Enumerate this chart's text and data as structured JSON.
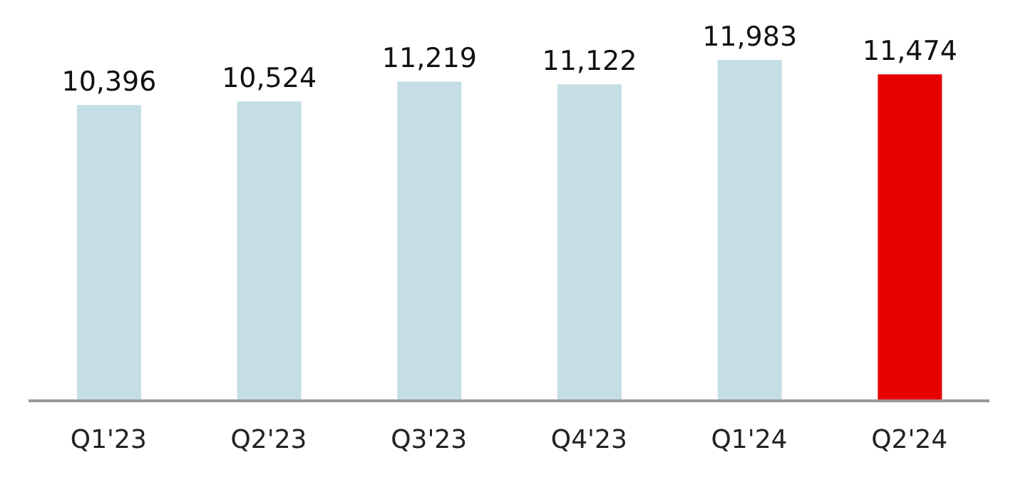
{
  "chart_data": {
    "type": "bar",
    "categories": [
      "Q1'23",
      "Q2'23",
      "Q3'23",
      "Q4'23",
      "Q1'24",
      "Q2'24"
    ],
    "values": [
      10396,
      10524,
      11219,
      11122,
      11983,
      11474
    ],
    "value_labels": [
      "10,396",
      "10,524",
      "11,219",
      "11,122",
      "11,983",
      "11,474"
    ],
    "colors": [
      "#c5dde5",
      "#c5dde5",
      "#c5dde5",
      "#c5dde5",
      "#c5dde5",
      "#e60000"
    ]
  }
}
